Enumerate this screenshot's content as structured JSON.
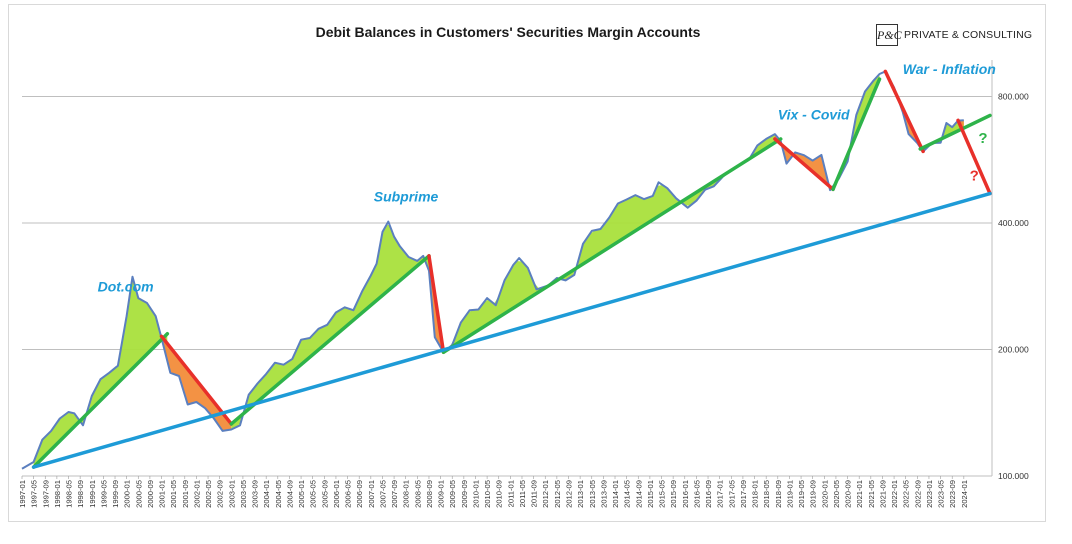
{
  "chart_data": {
    "type": "line",
    "title": "Debit Balances in Customers' Securities Margin Accounts",
    "brand": {
      "logo_text": "P&C",
      "name": "PRIVATE & CONSULTING"
    },
    "y_axis": {
      "scale": "log",
      "side": "right",
      "range": [
        100000,
        900000
      ],
      "ticks": [
        {
          "value": 100000,
          "label": "100.000"
        },
        {
          "value": 200000,
          "label": "200.000"
        },
        {
          "value": 400000,
          "label": "400.000"
        },
        {
          "value": 800000,
          "label": "800.000"
        }
      ],
      "grid": true
    },
    "x_axis": {
      "labels": [
        "1997-01",
        "1997-05",
        "1997-09",
        "1998-01",
        "1998-05",
        "1998-09",
        "1999-01",
        "1999-05",
        "1999-09",
        "2000-01",
        "2000-05",
        "2000-09",
        "2001-01",
        "2001-05",
        "2001-09",
        "2002-01",
        "2002-05",
        "2002-09",
        "2003-01",
        "2003-05",
        "2003-09",
        "2004-01",
        "2004-05",
        "2004-09",
        "2005-01",
        "2005-05",
        "2005-09",
        "2006-01",
        "2006-05",
        "2006-09",
        "2007-01",
        "2007-05",
        "2007-09",
        "2008-01",
        "2008-05",
        "2008-09",
        "2009-01",
        "2009-05",
        "2009-09",
        "2010-01",
        "2010-05",
        "2010-09",
        "2011-01",
        "2011-05",
        "2011-09",
        "2012-01",
        "2012-05",
        "2012-09",
        "2013-01",
        "2013-05",
        "2013-09",
        "2014-01",
        "2014-05",
        "2014-09",
        "2015-01",
        "2015-05",
        "2015-09",
        "2016-01",
        "2016-05",
        "2016-09",
        "2017-01",
        "2017-05",
        "2017-09",
        "2018-01",
        "2018-05",
        "2018-09",
        "2019-01",
        "2019-05",
        "2019-09",
        "2020-01",
        "2020-05",
        "2020-09",
        "2021-01",
        "2021-05",
        "2021-09",
        "2022-01",
        "2022-05",
        "2022-09",
        "2023-01",
        "2023-05",
        "2023-09",
        "2024-01"
      ]
    },
    "series": [
      {
        "color": "#5b7fbf",
        "points": [
          [
            "1997-01",
            104000
          ],
          [
            "1997-03",
            106000
          ],
          [
            "1997-05",
            108000
          ],
          [
            "1997-08",
            122000
          ],
          [
            "1997-11",
            128000
          ],
          [
            "1998-02",
            137000
          ],
          [
            "1998-05",
            142000
          ],
          [
            "1998-07",
            141000
          ],
          [
            "1998-10",
            132000
          ],
          [
            "1999-01",
            155000
          ],
          [
            "1999-04",
            170000
          ],
          [
            "1999-07",
            176000
          ],
          [
            "1999-10",
            183000
          ],
          [
            "2000-01",
            240000
          ],
          [
            "2000-03",
            298000
          ],
          [
            "2000-05",
            265000
          ],
          [
            "2000-08",
            258000
          ],
          [
            "2000-11",
            240000
          ],
          [
            "2001-01",
            213000
          ],
          [
            "2001-04",
            176000
          ],
          [
            "2001-07",
            173000
          ],
          [
            "2001-10",
            148000
          ],
          [
            "2002-01",
            150000
          ],
          [
            "2002-04",
            145000
          ],
          [
            "2002-07",
            137000
          ],
          [
            "2002-10",
            128000
          ],
          [
            "2003-01",
            129000
          ],
          [
            "2003-04",
            132000
          ],
          [
            "2003-07",
            156000
          ],
          [
            "2003-10",
            166000
          ],
          [
            "2004-01",
            175000
          ],
          [
            "2004-04",
            186000
          ],
          [
            "2004-07",
            184000
          ],
          [
            "2004-10",
            190000
          ],
          [
            "2005-01",
            211000
          ],
          [
            "2005-04",
            213000
          ],
          [
            "2005-07",
            224000
          ],
          [
            "2005-10",
            229000
          ],
          [
            "2006-01",
            245000
          ],
          [
            "2006-04",
            252000
          ],
          [
            "2006-07",
            248000
          ],
          [
            "2006-10",
            275000
          ],
          [
            "2007-01",
            300000
          ],
          [
            "2007-03",
            320000
          ],
          [
            "2007-05",
            381000
          ],
          [
            "2007-07",
            403000
          ],
          [
            "2007-09",
            371000
          ],
          [
            "2007-11",
            352000
          ],
          [
            "2008-02",
            332000
          ],
          [
            "2008-05",
            325000
          ],
          [
            "2008-07",
            334000
          ],
          [
            "2008-09",
            308000
          ],
          [
            "2008-11",
            214000
          ],
          [
            "2009-02",
            197000
          ],
          [
            "2009-05",
            205000
          ],
          [
            "2009-08",
            232000
          ],
          [
            "2009-11",
            248000
          ],
          [
            "2010-02",
            249000
          ],
          [
            "2010-05",
            265000
          ],
          [
            "2010-08",
            255000
          ],
          [
            "2010-11",
            292000
          ],
          [
            "2011-02",
            318000
          ],
          [
            "2011-04",
            330000
          ],
          [
            "2011-07",
            313000
          ],
          [
            "2011-10",
            278000
          ],
          [
            "2012-02",
            284000
          ],
          [
            "2012-05",
            296000
          ],
          [
            "2012-08",
            292000
          ],
          [
            "2012-11",
            301000
          ],
          [
            "2013-02",
            357000
          ],
          [
            "2013-05",
            383000
          ],
          [
            "2013-08",
            387000
          ],
          [
            "2013-11",
            412000
          ],
          [
            "2014-02",
            445000
          ],
          [
            "2014-05",
            455000
          ],
          [
            "2014-08",
            466000
          ],
          [
            "2014-11",
            456000
          ],
          [
            "2015-02",
            464000
          ],
          [
            "2015-04",
            500000
          ],
          [
            "2015-07",
            484000
          ],
          [
            "2015-10",
            458000
          ],
          [
            "2016-02",
            435000
          ],
          [
            "2016-05",
            452000
          ],
          [
            "2016-08",
            480000
          ],
          [
            "2016-11",
            489000
          ],
          [
            "2017-02",
            515000
          ],
          [
            "2017-05",
            536000
          ],
          [
            "2017-08",
            550000
          ],
          [
            "2017-11",
            565000
          ],
          [
            "2018-02",
            612000
          ],
          [
            "2018-05",
            634000
          ],
          [
            "2018-08",
            651000
          ],
          [
            "2018-10",
            627000
          ],
          [
            "2018-12",
            554000
          ],
          [
            "2019-03",
            589000
          ],
          [
            "2019-06",
            580000
          ],
          [
            "2019-09",
            563000
          ],
          [
            "2019-12",
            581000
          ],
          [
            "2020-03",
            479000
          ],
          [
            "2020-06",
            510000
          ],
          [
            "2020-09",
            560000
          ],
          [
            "2020-12",
            723000
          ],
          [
            "2021-03",
            822000
          ],
          [
            "2021-06",
            874000
          ],
          [
            "2021-08",
            905000
          ],
          [
            "2021-10",
            918000
          ],
          [
            "2022-01",
            840000
          ],
          [
            "2022-04",
            734000
          ],
          [
            "2022-06",
            651000
          ],
          [
            "2022-09",
            620000
          ],
          [
            "2022-11",
            592000
          ],
          [
            "2023-02",
            620000
          ],
          [
            "2023-05",
            621000
          ],
          [
            "2023-07",
            692000
          ],
          [
            "2023-09",
            676000
          ],
          [
            "2023-11",
            701000
          ],
          [
            "2024-01",
            702000
          ]
        ]
      }
    ],
    "fills": {
      "above_trend": "#a9e03c",
      "below_trend": "#f28c3a"
    },
    "trend_lines": [
      {
        "color": "#2eb34a",
        "from": [
          "1997-05",
          105000
        ],
        "to": [
          "2001-03",
          218000
        ]
      },
      {
        "color": "#e8302a",
        "from": [
          "2001-01",
          215000
        ],
        "to": [
          "2003-01",
          133000
        ]
      },
      {
        "color": "#2eb34a",
        "from": [
          "2003-01",
          133000
        ],
        "to": [
          "2008-09",
          334000
        ]
      },
      {
        "color": "#e8302a",
        "from": [
          "2008-09",
          334000
        ],
        "to": [
          "2009-02",
          197000
        ]
      },
      {
        "color": "#2eb34a",
        "from": [
          "2009-02",
          197000
        ],
        "to": [
          "2018-10",
          634000
        ]
      },
      {
        "color": "#e8302a",
        "from": [
          "2018-08",
          634000
        ],
        "to": [
          "2020-04",
          481000
        ]
      },
      {
        "color": "#2eb34a",
        "from": [
          "2020-04",
          481000
        ],
        "to": [
          "2021-08",
          880000
        ]
      },
      {
        "color": "#e8302a",
        "from": [
          "2021-10",
          918000
        ],
        "to": [
          "2022-11",
          592000
        ]
      },
      {
        "color": "#2eb34a",
        "from": [
          "2022-10",
          600000
        ],
        "to": [
          "2024-10",
          721000
        ]
      },
      {
        "color": "#e8302a",
        "from": [
          "2023-11",
          702000
        ],
        "to": [
          "2024-10",
          470000
        ]
      },
      {
        "color": "#1e9bd7",
        "from": [
          "1997-05",
          105000
        ],
        "to": [
          "2024-10",
          470000
        ]
      }
    ],
    "annotations": [
      {
        "text": "Dot.com",
        "color": "#1e9bd7",
        "at": [
          "1999-03",
          275000
        ]
      },
      {
        "text": "Subprime",
        "color": "#1e9bd7",
        "at": [
          "2007-02",
          450000
        ]
      },
      {
        "text": "Vix - Covid",
        "color": "#1e9bd7",
        "at": [
          "2018-09",
          705000
        ]
      },
      {
        "text": "War - Inflation",
        "color": "#1e9bd7",
        "at": [
          "2022-04",
          905000
        ]
      },
      {
        "text": "?",
        "color": "#2eb34a",
        "at": [
          "2024-06",
          620000
        ]
      },
      {
        "text": "?",
        "color": "#e8302a",
        "at": [
          "2024-03",
          505000
        ]
      }
    ]
  }
}
